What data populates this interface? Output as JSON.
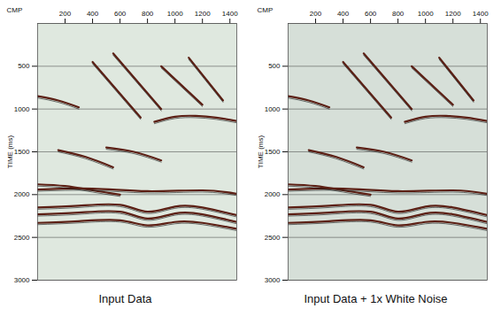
{
  "chart_data": [
    {
      "type": "line",
      "title": "Input Data",
      "xlabel": "CMP",
      "ylabel": "TIME (ms)",
      "xlim": [
        0,
        1450
      ],
      "xticks": [
        200,
        400,
        600,
        800,
        1000,
        1200,
        1400
      ],
      "ylim": [
        0,
        3000
      ],
      "yticks": [
        500,
        1000,
        1500,
        2000,
        2500,
        3000
      ],
      "grid": true,
      "color": "#5b1f14",
      "series": [
        {
          "x": [
            0,
            300,
            600,
            800,
            1000,
            1200,
            1450
          ],
          "values": [
            2150,
            2130,
            2120,
            2200,
            2140,
            2150,
            2240
          ]
        },
        {
          "x": [
            0,
            300,
            600,
            800,
            1000,
            1200,
            1450
          ],
          "values": [
            2230,
            2210,
            2200,
            2280,
            2220,
            2230,
            2320
          ]
        },
        {
          "x": [
            0,
            300,
            600,
            800,
            1000,
            1200,
            1450
          ],
          "values": [
            2330,
            2310,
            2300,
            2360,
            2320,
            2330,
            2400
          ]
        },
        {
          "x": [
            0,
            400,
            800,
            1200,
            1450
          ],
          "values": [
            1940,
            1930,
            1960,
            1950,
            1990
          ]
        },
        {
          "x": [
            400,
            750
          ],
          "values": [
            450,
            1100
          ]
        },
        {
          "x": [
            550,
            900
          ],
          "values": [
            350,
            1000
          ]
        },
        {
          "x": [
            900,
            1200
          ],
          "values": [
            500,
            950
          ]
        },
        {
          "x": [
            1100,
            1350
          ],
          "values": [
            400,
            900
          ]
        },
        {
          "x": [
            850,
            1000,
            1150,
            1300,
            1450
          ],
          "values": [
            1150,
            1090,
            1080,
            1100,
            1140
          ]
        },
        {
          "x": [
            150,
            350,
            550
          ],
          "values": [
            1480,
            1560,
            1680
          ]
        },
        {
          "x": [
            500,
            700,
            900
          ],
          "values": [
            1450,
            1500,
            1600
          ]
        },
        {
          "x": [
            0,
            150,
            300
          ],
          "values": [
            850,
            900,
            980
          ]
        },
        {
          "x": [
            0,
            200,
            400,
            600
          ],
          "values": [
            1880,
            1900,
            1950,
            2000
          ]
        }
      ]
    },
    {
      "type": "line",
      "title": "Input Data + 1x White Noise",
      "xlabel": "CMP",
      "ylabel": "TIME (ms)",
      "xlim": [
        0,
        1450
      ],
      "xticks": [
        200,
        400,
        600,
        800,
        1000,
        1200,
        1400
      ],
      "ylim": [
        0,
        3000
      ],
      "yticks": [
        500,
        1000,
        1500,
        2000,
        2500,
        3000
      ],
      "grid": true,
      "color": "#5b1f14",
      "series": [
        {
          "x": [
            0,
            300,
            600,
            800,
            1000,
            1200,
            1450
          ],
          "values": [
            2150,
            2130,
            2120,
            2200,
            2140,
            2150,
            2240
          ]
        },
        {
          "x": [
            0,
            300,
            600,
            800,
            1000,
            1200,
            1450
          ],
          "values": [
            2230,
            2210,
            2200,
            2280,
            2220,
            2230,
            2320
          ]
        },
        {
          "x": [
            0,
            300,
            600,
            800,
            1000,
            1200,
            1450
          ],
          "values": [
            2330,
            2310,
            2300,
            2360,
            2320,
            2330,
            2400
          ]
        },
        {
          "x": [
            0,
            400,
            800,
            1200,
            1450
          ],
          "values": [
            1940,
            1930,
            1960,
            1950,
            1990
          ]
        },
        {
          "x": [
            400,
            750
          ],
          "values": [
            450,
            1100
          ]
        },
        {
          "x": [
            550,
            900
          ],
          "values": [
            350,
            1000
          ]
        },
        {
          "x": [
            900,
            1200
          ],
          "values": [
            500,
            950
          ]
        },
        {
          "x": [
            1100,
            1350
          ],
          "values": [
            400,
            900
          ]
        },
        {
          "x": [
            850,
            1000,
            1150,
            1300,
            1450
          ],
          "values": [
            1150,
            1090,
            1080,
            1100,
            1140
          ]
        },
        {
          "x": [
            150,
            350,
            550
          ],
          "values": [
            1480,
            1560,
            1680
          ]
        },
        {
          "x": [
            500,
            700,
            900
          ],
          "values": [
            1450,
            1500,
            1600
          ]
        },
        {
          "x": [
            0,
            150,
            300
          ],
          "values": [
            850,
            900,
            980
          ]
        },
        {
          "x": [
            0,
            200,
            400,
            600
          ],
          "values": [
            1880,
            1900,
            1950,
            2000
          ]
        }
      ]
    }
  ]
}
